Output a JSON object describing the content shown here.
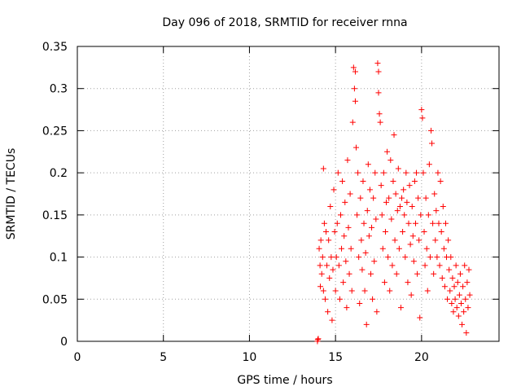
{
  "chart_data": {
    "type": "scatter",
    "title": "Day 096 of 2018, SRMTID for receiver rnna",
    "xlabel": "GPS time / hours",
    "ylabel": "SRMTID / TECUs",
    "xlim": [
      0,
      24.5
    ],
    "ylim": [
      0,
      0.35
    ],
    "x_ticks": [
      0,
      5,
      10,
      15,
      20
    ],
    "x_tick_labels": [
      "0",
      "5",
      "10",
      "15",
      "20"
    ],
    "y_ticks": [
      0,
      0.05,
      0.1,
      0.15,
      0.2,
      0.25,
      0.3,
      0.35
    ],
    "y_tick_labels": [
      "0",
      "0.05",
      "0.1",
      "0.15",
      "0.2",
      "0.25",
      "0.3",
      "0.35"
    ],
    "grid": true,
    "marker": "+",
    "color": "#ff0000",
    "series": [
      {
        "name": "SRMTID",
        "points": [
          [
            13.95,
            0.0
          ],
          [
            13.97,
            0.002
          ],
          [
            14.0,
            0.003
          ],
          [
            14.05,
            0.11
          ],
          [
            14.1,
            0.09
          ],
          [
            14.12,
            0.065
          ],
          [
            14.15,
            0.12
          ],
          [
            14.2,
            0.08
          ],
          [
            14.25,
            0.1
          ],
          [
            14.3,
            0.205
          ],
          [
            14.3,
            0.06
          ],
          [
            14.35,
            0.14
          ],
          [
            14.4,
            0.05
          ],
          [
            14.45,
            0.13
          ],
          [
            14.5,
            0.09
          ],
          [
            14.55,
            0.035
          ],
          [
            14.6,
            0.12
          ],
          [
            14.65,
            0.075
          ],
          [
            14.7,
            0.16
          ],
          [
            14.75,
            0.1
          ],
          [
            14.8,
            0.025
          ],
          [
            14.85,
            0.085
          ],
          [
            14.9,
            0.18
          ],
          [
            14.95,
            0.13
          ],
          [
            15.0,
            0.06
          ],
          [
            15.05,
            0.1
          ],
          [
            15.1,
            0.14
          ],
          [
            15.15,
            0.2
          ],
          [
            15.2,
            0.09
          ],
          [
            15.25,
            0.05
          ],
          [
            15.3,
            0.15
          ],
          [
            15.35,
            0.11
          ],
          [
            15.4,
            0.19
          ],
          [
            15.45,
            0.07
          ],
          [
            15.5,
            0.125
          ],
          [
            15.55,
            0.165
          ],
          [
            15.6,
            0.095
          ],
          [
            15.65,
            0.04
          ],
          [
            15.7,
            0.215
          ],
          [
            15.75,
            0.135
          ],
          [
            15.8,
            0.08
          ],
          [
            15.85,
            0.175
          ],
          [
            15.9,
            0.11
          ],
          [
            15.95,
            0.06
          ],
          [
            16.0,
            0.26
          ],
          [
            16.05,
            0.325
          ],
          [
            16.1,
            0.3
          ],
          [
            16.15,
            0.32
          ],
          [
            16.15,
            0.285
          ],
          [
            16.2,
            0.23
          ],
          [
            16.25,
            0.15
          ],
          [
            16.3,
            0.2
          ],
          [
            16.35,
            0.1
          ],
          [
            16.4,
            0.045
          ],
          [
            16.45,
            0.17
          ],
          [
            16.5,
            0.12
          ],
          [
            16.55,
            0.085
          ],
          [
            16.6,
            0.19
          ],
          [
            16.65,
            0.14
          ],
          [
            16.7,
            0.06
          ],
          [
            16.75,
            0.105
          ],
          [
            16.8,
            0.02
          ],
          [
            16.85,
            0.155
          ],
          [
            16.9,
            0.21
          ],
          [
            16.95,
            0.125
          ],
          [
            17.0,
            0.18
          ],
          [
            17.05,
            0.08
          ],
          [
            17.1,
            0.135
          ],
          [
            17.15,
            0.05
          ],
          [
            17.2,
            0.17
          ],
          [
            17.25,
            0.095
          ],
          [
            17.3,
            0.2
          ],
          [
            17.35,
            0.145
          ],
          [
            17.4,
            0.035
          ],
          [
            17.45,
            0.33
          ],
          [
            17.5,
            0.32
          ],
          [
            17.5,
            0.295
          ],
          [
            17.55,
            0.27
          ],
          [
            17.6,
            0.26
          ],
          [
            17.65,
            0.185
          ],
          [
            17.7,
            0.15
          ],
          [
            17.75,
            0.11
          ],
          [
            17.8,
            0.2
          ],
          [
            17.85,
            0.07
          ],
          [
            17.9,
            0.13
          ],
          [
            17.95,
            0.165
          ],
          [
            18.0,
            0.225
          ],
          [
            18.05,
            0.1
          ],
          [
            18.1,
            0.17
          ],
          [
            18.15,
            0.06
          ],
          [
            18.2,
            0.215
          ],
          [
            18.25,
            0.145
          ],
          [
            18.3,
            0.09
          ],
          [
            18.35,
            0.19
          ],
          [
            18.4,
            0.245
          ],
          [
            18.45,
            0.12
          ],
          [
            18.5,
            0.175
          ],
          [
            18.55,
            0.08
          ],
          [
            18.6,
            0.155
          ],
          [
            18.65,
            0.205
          ],
          [
            18.7,
            0.11
          ],
          [
            18.75,
            0.16
          ],
          [
            18.8,
            0.04
          ],
          [
            18.85,
            0.17
          ],
          [
            18.9,
            0.13
          ],
          [
            18.95,
            0.18
          ],
          [
            19.0,
            0.15
          ],
          [
            19.05,
            0.1
          ],
          [
            19.1,
            0.2
          ],
          [
            19.15,
            0.165
          ],
          [
            19.2,
            0.07
          ],
          [
            19.25,
            0.14
          ],
          [
            19.3,
            0.185
          ],
          [
            19.35,
            0.115
          ],
          [
            19.4,
            0.055
          ],
          [
            19.45,
            0.16
          ],
          [
            19.5,
            0.125
          ],
          [
            19.55,
            0.095
          ],
          [
            19.6,
            0.19
          ],
          [
            19.65,
            0.14
          ],
          [
            19.7,
            0.2
          ],
          [
            19.75,
            0.08
          ],
          [
            19.8,
            0.17
          ],
          [
            19.85,
            0.12
          ],
          [
            19.9,
            0.028
          ],
          [
            19.95,
            0.15
          ],
          [
            20.0,
            0.275
          ],
          [
            20.05,
            0.265
          ],
          [
            20.1,
            0.2
          ],
          [
            20.15,
            0.13
          ],
          [
            20.2,
            0.09
          ],
          [
            20.25,
            0.17
          ],
          [
            20.3,
            0.11
          ],
          [
            20.35,
            0.06
          ],
          [
            20.4,
            0.15
          ],
          [
            20.45,
            0.21
          ],
          [
            20.5,
            0.1
          ],
          [
            20.55,
            0.25
          ],
          [
            20.6,
            0.235
          ],
          [
            20.65,
            0.14
          ],
          [
            20.7,
            0.08
          ],
          [
            20.75,
            0.175
          ],
          [
            20.8,
            0.12
          ],
          [
            20.85,
            0.155
          ],
          [
            20.9,
            0.1
          ],
          [
            20.95,
            0.2
          ],
          [
            21.0,
            0.14
          ],
          [
            21.05,
            0.09
          ],
          [
            21.1,
            0.19
          ],
          [
            21.15,
            0.13
          ],
          [
            21.2,
            0.075
          ],
          [
            21.25,
            0.16
          ],
          [
            21.3,
            0.11
          ],
          [
            21.35,
            0.065
          ],
          [
            21.4,
            0.14
          ],
          [
            21.45,
            0.1
          ],
          [
            21.5,
            0.05
          ],
          [
            21.55,
            0.12
          ],
          [
            21.6,
            0.085
          ],
          [
            21.65,
            0.06
          ],
          [
            21.7,
            0.1
          ],
          [
            21.75,
            0.045
          ],
          [
            21.8,
            0.075
          ],
          [
            21.85,
            0.035
          ],
          [
            21.9,
            0.065
          ],
          [
            21.95,
            0.05
          ],
          [
            22.0,
            0.09
          ],
          [
            22.05,
            0.04
          ],
          [
            22.1,
            0.07
          ],
          [
            22.15,
            0.03
          ],
          [
            22.2,
            0.055
          ],
          [
            22.25,
            0.08
          ],
          [
            22.3,
            0.045
          ],
          [
            22.35,
            0.02
          ],
          [
            22.4,
            0.065
          ],
          [
            22.45,
            0.035
          ],
          [
            22.5,
            0.09
          ],
          [
            22.55,
            0.05
          ],
          [
            22.6,
            0.01
          ],
          [
            22.65,
            0.07
          ],
          [
            22.7,
            0.04
          ],
          [
            22.75,
            0.085
          ],
          [
            22.8,
            0.055
          ]
        ]
      }
    ]
  }
}
